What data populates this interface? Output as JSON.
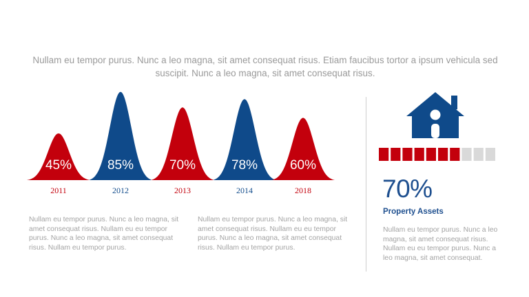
{
  "intro_text": "Nullam eu tempor purus. Nunc a leo magna, sit amet consequat risus. Etiam faucibus tortor a ipsum vehicula sed suscipit. Nunc a leo magna, sit amet consequat risus.",
  "colors": {
    "red": "#c3000c",
    "blue": "#0f4a8a",
    "gray": "#d9d9d9",
    "muted_text": "#a3a3a3"
  },
  "chart_data": {
    "type": "area",
    "shape": "bell-curve",
    "categories": [
      "2011",
      "2012",
      "2013",
      "2014",
      "2018"
    ],
    "values": [
      45,
      85,
      70,
      78,
      60
    ],
    "value_labels": [
      "45%",
      "85%",
      "70%",
      "78%",
      "60%"
    ],
    "colors": [
      "#c3000c",
      "#0f4a8a",
      "#c3000c",
      "#0f4a8a",
      "#c3000c"
    ],
    "ylim": [
      0,
      100
    ],
    "title": "",
    "xlabel": "",
    "ylabel": "",
    "grid": false
  },
  "paragraphs": {
    "left": "Nullam eu tempor purus. Nunc a leo magna, sit amet consequat risus. Nullam eu eu tempor purus. Nunc a leo magna, sit amet consequat risus. Nullam eu tempor purus.",
    "middle": "Nullam eu tempor purus. Nunc a leo magna, sit amet consequat risus. Nullam eu eu tempor purus. Nunc a leo magna, sit amet consequat risus. Nullam eu tempor purus.",
    "right": "Nullam eu tempor purus. Nunc a leo magna, sit amet consequat risus. Nullam eu eu tempor purus. Nunc a leo magna, sit amet consequat."
  },
  "property_assets": {
    "icon": "house-icon",
    "percent_text": "70%",
    "label": "Property Assets",
    "meter": {
      "filled": 7,
      "total": 10
    }
  }
}
